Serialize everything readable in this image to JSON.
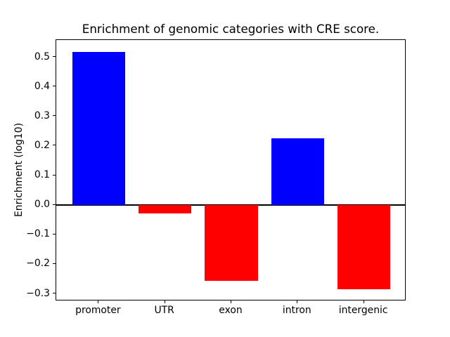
{
  "chart_data": {
    "type": "bar",
    "title": "Enrichment of genomic categories with CRE score.",
    "xlabel": "",
    "ylabel": "Enrichment (log10)",
    "categories": [
      "promoter",
      "UTR",
      "exon",
      "intron",
      "intergenic"
    ],
    "values": [
      0.517,
      -0.029,
      -0.258,
      0.224,
      -0.286
    ],
    "bar_colors": [
      "#0000ff",
      "#ff0000",
      "#ff0000",
      "#0000ff",
      "#ff0000"
    ],
    "positive_color": "#0000ff",
    "negative_color": "#ff0000",
    "yticks": [
      0.5,
      0.4,
      0.3,
      0.2,
      0.1,
      0.0,
      -0.1,
      -0.2,
      -0.3
    ],
    "ytick_labels": [
      "0.5",
      "0.4",
      "0.3",
      "0.2",
      "0.1",
      "0.0",
      "−0.1",
      "−0.2",
      "−0.3"
    ],
    "ylim": [
      -0.326,
      0.557
    ],
    "xlim": [
      -0.64,
      4.64
    ],
    "bar_width": 0.8,
    "zero_line": true,
    "grid": false,
    "legend": null,
    "background_color": "#ffffff",
    "axis_color": "#000000"
  }
}
